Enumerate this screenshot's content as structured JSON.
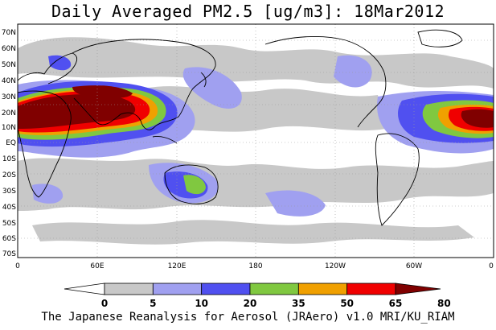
{
  "title": "Daily Averaged PM2.5 [ug/m3]: 18Mar2012",
  "footer": "The Japanese Reanalysis for Aerosol (JRAero) v1.0 MRI/KU_RIAM",
  "map": {
    "lat_labels": [
      "70N",
      "60N",
      "50N",
      "40N",
      "30N",
      "20N",
      "10N",
      "EQ",
      "10S",
      "20S",
      "30S",
      "40S",
      "50S",
      "60S",
      "70S"
    ],
    "lon_labels": [
      "0",
      "60E",
      "120E",
      "180",
      "120W",
      "60W",
      "0"
    ],
    "ocean_color": "#ffffff",
    "coast_color": "#000000"
  },
  "colorbar": {
    "labels": [
      "0",
      "5",
      "10",
      "20",
      "35",
      "50",
      "65",
      "80"
    ],
    "colors": [
      "#ffffff",
      "#c8c8c8",
      "#a0a0f0",
      "#5050f0",
      "#80c840",
      "#f0a000",
      "#f00000",
      "#800000"
    ]
  }
}
